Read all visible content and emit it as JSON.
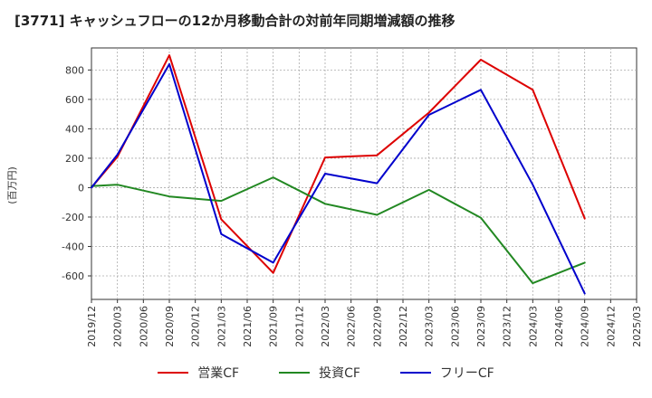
{
  "colors": {
    "grid": "#aaaaaa",
    "axis": "#333333",
    "op": "#dd0000",
    "inv": "#228822",
    "free": "#0000cc"
  },
  "chart_data": {
    "type": "line",
    "title": "[3771]  キャッシュフローの12か月移動合計の対前年同期増減額の推移",
    "ylabel": "(百万円)",
    "ylim": [
      -760,
      950
    ],
    "yticks": [
      -600,
      -400,
      -200,
      0,
      200,
      400,
      600,
      800
    ],
    "categories": [
      "2019/12",
      "2020/03",
      "2020/06",
      "2020/09",
      "2020/12",
      "2021/03",
      "2021/06",
      "2021/09",
      "2021/12",
      "2022/03",
      "2022/06",
      "2022/09",
      "2022/12",
      "2023/03",
      "2023/06",
      "2023/09",
      "2023/12",
      "2024/03",
      "2024/06",
      "2024/09",
      "2024/12",
      "2025/03"
    ],
    "series": [
      {
        "name": "営業CF",
        "color": "#dd0000",
        "values": [
          0,
          210,
          null,
          900,
          null,
          -215,
          null,
          -580,
          null,
          205,
          null,
          220,
          null,
          510,
          null,
          870,
          null,
          665,
          null,
          -210,
          null,
          null
        ]
      },
      {
        "name": "投資CF",
        "color": "#228822",
        "values": [
          10,
          20,
          null,
          -60,
          null,
          -90,
          null,
          70,
          null,
          -110,
          null,
          -185,
          null,
          -15,
          null,
          -205,
          null,
          -650,
          null,
          -510,
          null,
          null
        ]
      },
      {
        "name": "フリーCF",
        "color": "#0000cc",
        "values": [
          0,
          225,
          null,
          840,
          null,
          -315,
          null,
          -510,
          null,
          95,
          null,
          30,
          null,
          495,
          null,
          665,
          null,
          20,
          null,
          -720,
          null,
          null
        ]
      }
    ]
  }
}
